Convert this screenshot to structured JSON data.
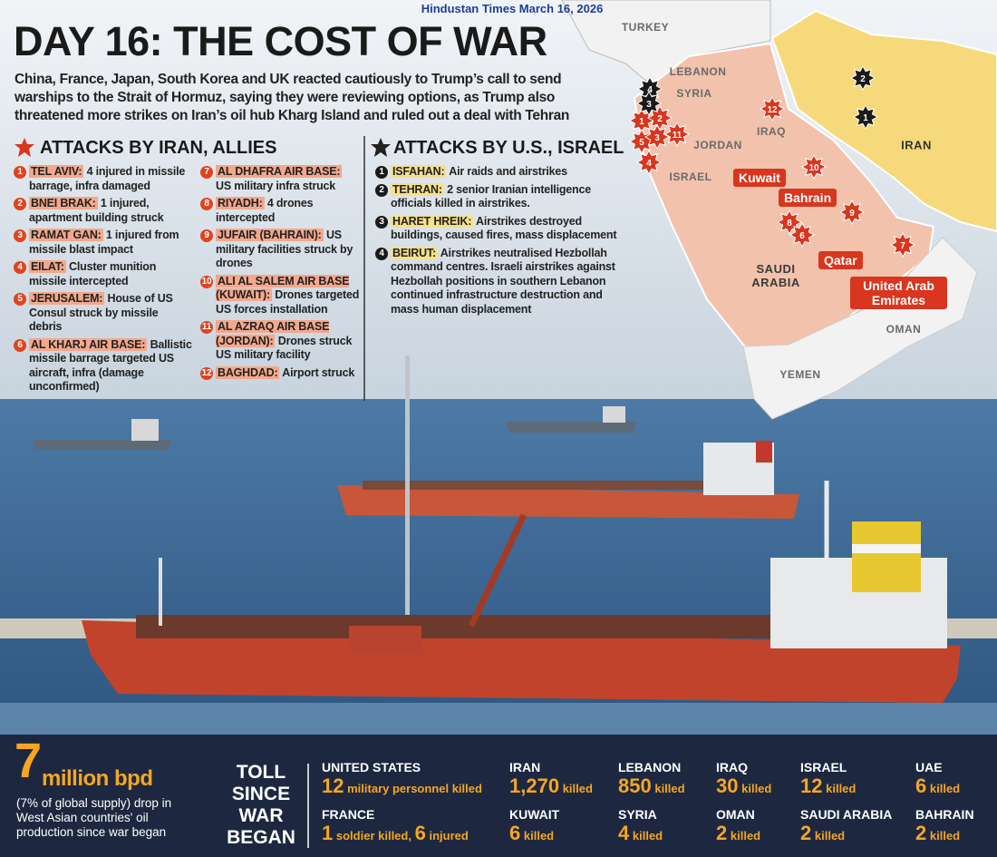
{
  "header": {
    "source": "Hindustan Times March 16, 2026",
    "title": "DAY 16: THE COST OF WAR",
    "intro": "China, France, Japan, South Korea and UK reacted cautiously to Trump’s call to send warships to the Strait of Hormuz, saying they were reviewing options, as Trump also threatened more strikes on Iran’s oil hub Kharg Island and ruled out a deal with Tehran"
  },
  "iran_attacks": {
    "heading": "ATTACKS BY IRAN, ALLIES",
    "items": [
      {
        "num": "1",
        "place": "TEL AVIV:",
        "text": "4 injured in missile barrage, infra damaged"
      },
      {
        "num": "2",
        "place": "BNEI BRAK:",
        "text": "1 injured, apartment building struck"
      },
      {
        "num": "3",
        "place": "RAMAT GAN:",
        "text": "1 injured from missile blast impact"
      },
      {
        "num": "4",
        "place": "EILAT:",
        "text": "Cluster munition missile intercepted"
      },
      {
        "num": "5",
        "place": "JERUSALEM:",
        "text": "House of US Consul struck by missile debris"
      },
      {
        "num": "6",
        "place": "AL KHARJ AIR BASE:",
        "text": "Ballistic missile barrage targeted US aircraft, infra (damage unconfirmed)"
      },
      {
        "num": "7",
        "place": "AL DHAFRA AIR BASE:",
        "text": "US military infra struck"
      },
      {
        "num": "8",
        "place": "RIYADH:",
        "text": "4 drones intercepted"
      },
      {
        "num": "9",
        "place": "JUFAIR (BAHRAIN):",
        "text": "US military facilities struck by drones"
      },
      {
        "num": "10",
        "place": "ALI AL SALEM AIR BASE (KUWAIT):",
        "text": "Drones targeted US forces installation"
      },
      {
        "num": "11",
        "place": "AL AZRAQ AIR BASE (JORDAN):",
        "text": "Drones struck US military facility"
      },
      {
        "num": "12",
        "place": "BAGHDAD:",
        "text": "Airport struck"
      }
    ]
  },
  "us_attacks": {
    "heading": "ATTACKS BY U.S., ISRAEL",
    "items": [
      {
        "num": "1",
        "place": "ISFAHAN:",
        "text": "Air raids and airstrikes"
      },
      {
        "num": "2",
        "place": "TEHRAN:",
        "text": "2 senior Iranian intelligence officials killed in airstrikes."
      },
      {
        "num": "3",
        "place": "HARET HREIK:",
        "text": "Airstrikes destroyed buildings, caused fires, mass displacement"
      },
      {
        "num": "4",
        "place": "BEIRUT:",
        "text": "Airstrikes neutralised Hezbollah command centres. Israeli airstrikes against Hezbollah positions in southern Lebanon continued infrastructure destruction and mass human displacement"
      }
    ]
  },
  "map": {
    "labels": [
      "TURKEY",
      "LEBANON",
      "SYRIA",
      "IRAQ",
      "JORDAN",
      "ISRAEL",
      "IRAN",
      "SAUDI ARABIA",
      "YEMEN",
      "OMAN"
    ],
    "callouts": [
      "Kuwait",
      "Bahrain",
      "Qatar",
      "United Arab Emirates"
    ],
    "iran_markers": [
      "1",
      "2",
      "5",
      "3",
      "11",
      "4",
      "12",
      "10",
      "9",
      "8",
      "6",
      "7"
    ],
    "us_markers": [
      "4",
      "3",
      "2",
      "1"
    ]
  },
  "oil": {
    "value": "7",
    "unit": "million bpd",
    "text": "(7% of global supply) drop in West Asian countries' oil production since war began"
  },
  "toll": {
    "heading": [
      "TOLL",
      "SINCE",
      "WAR",
      "BEGAN"
    ],
    "entries": [
      {
        "country": "UNITED STATES",
        "figures": [
          {
            "number": "12",
            "text": "military personnel killed"
          }
        ]
      },
      {
        "country": "FRANCE",
        "figures": [
          {
            "number": "1",
            "text": "soldier killed,"
          },
          {
            "number": "6",
            "text": "injured"
          }
        ]
      },
      {
        "country": "IRAN",
        "figures": [
          {
            "number": "1,270",
            "text": "killed"
          }
        ]
      },
      {
        "country": "KUWAIT",
        "figures": [
          {
            "number": "6",
            "text": "killed"
          }
        ]
      },
      {
        "country": "LEBANON",
        "figures": [
          {
            "number": "850",
            "text": "killed"
          }
        ]
      },
      {
        "country": "SYRIA",
        "figures": [
          {
            "number": "4",
            "text": "killed"
          }
        ]
      },
      {
        "country": "IRAQ",
        "figures": [
          {
            "number": "30",
            "text": "killed"
          }
        ]
      },
      {
        "country": "OMAN",
        "figures": [
          {
            "number": "2",
            "text": "killed"
          }
        ]
      },
      {
        "country": "ISRAEL",
        "figures": [
          {
            "number": "12",
            "text": "killed"
          }
        ]
      },
      {
        "country": "SAUDI ARABIA",
        "figures": [
          {
            "number": "2",
            "text": "killed"
          }
        ]
      },
      {
        "country": "UAE",
        "figures": [
          {
            "number": "6",
            "text": "killed"
          }
        ]
      },
      {
        "country": "BAHRAIN",
        "figures": [
          {
            "number": "2",
            "text": "killed"
          }
        ]
      }
    ]
  }
}
